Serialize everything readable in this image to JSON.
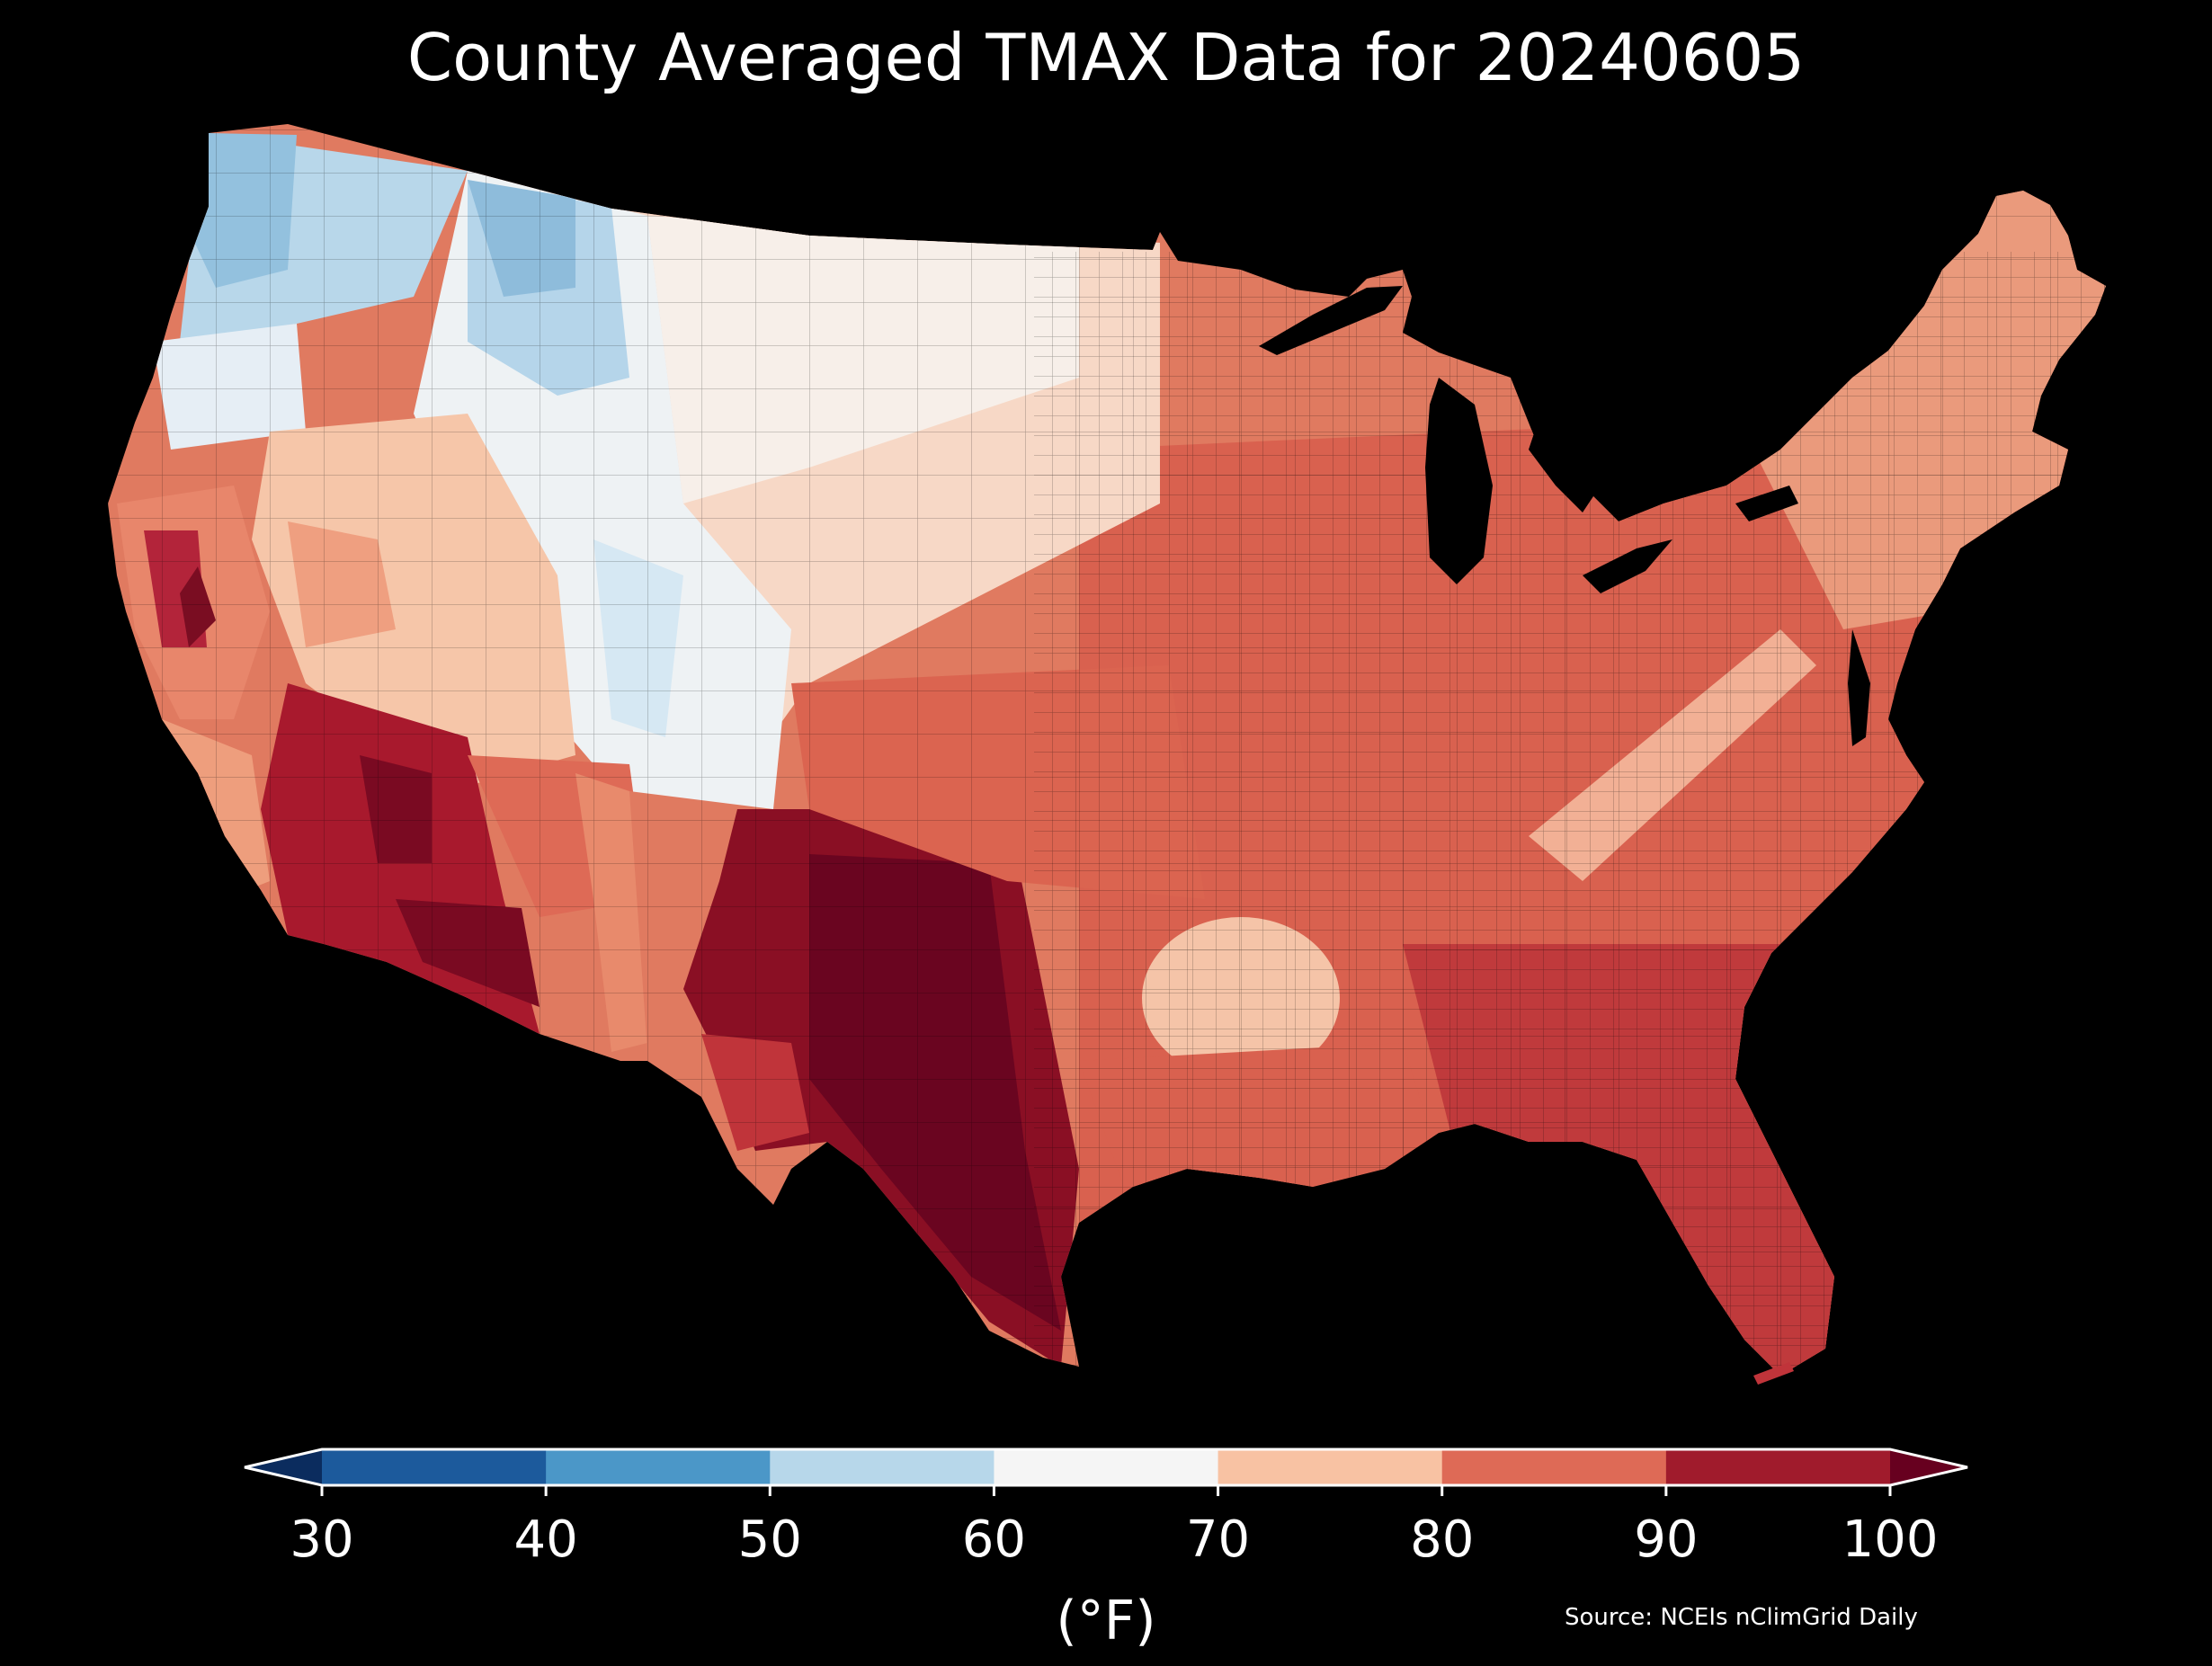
{
  "title": "County Averaged TMAX Data for 20240605",
  "legend": {
    "units": "(°F)",
    "ticks": [
      "30",
      "40",
      "50",
      "60",
      "70",
      "80",
      "90",
      "100"
    ],
    "bins": [
      {
        "range": "<30",
        "color": "#0b2c5e"
      },
      {
        "range": "30-40",
        "color": "#1c5a9c"
      },
      {
        "range": "40-50",
        "color": "#4b97c8"
      },
      {
        "range": "50-60",
        "color": "#b7d7ea"
      },
      {
        "range": "60-70",
        "color": "#f5f5f5"
      },
      {
        "range": "70-80",
        "color": "#f8c2a3"
      },
      {
        "range": "80-90",
        "color": "#de6a56"
      },
      {
        "range": "90-100",
        "color": "#a01b2c"
      },
      {
        "range": ">100",
        "color": "#67001f"
      }
    ]
  },
  "source": "Source: NCEIs nClimGrid Daily"
}
